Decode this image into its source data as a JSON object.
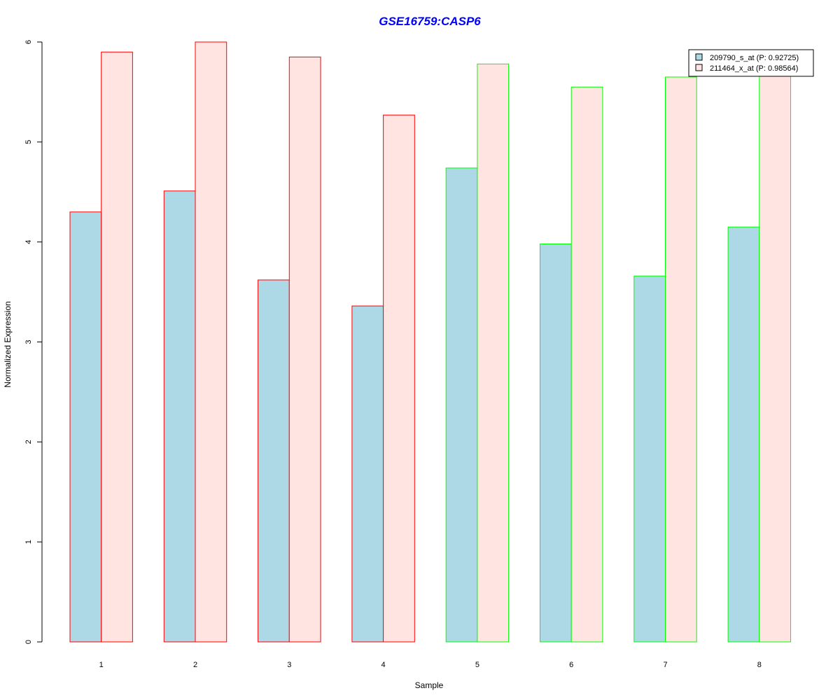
{
  "chart_data": {
    "type": "bar",
    "title": "GSE16759:CASP6",
    "xlabel": "Sample",
    "ylabel": "Normalized Expression",
    "categories": [
      "1",
      "2",
      "3",
      "4",
      "5",
      "6",
      "7",
      "8"
    ],
    "yticks": [
      "0",
      "1",
      "2",
      "3",
      "4",
      "5",
      "6"
    ],
    "ylim": [
      0,
      6
    ],
    "series": [
      {
        "name": "209790_s_at (P: 0.92725)",
        "fill": "#add8e6",
        "values": [
          4.3,
          4.51,
          3.62,
          3.36,
          4.74,
          3.98,
          3.66,
          4.15
        ]
      },
      {
        "name": "211464_x_at (P: 0.98564)",
        "fill": "#ffe4e1",
        "values": [
          5.9,
          6.0,
          5.85,
          5.27,
          5.78,
          5.55,
          5.65,
          5.76
        ]
      }
    ],
    "group_border_colors": [
      "#ff0000",
      "#ff0000",
      "#ff0000",
      "#ff0000",
      "#00ff00",
      "#00ff00",
      "#00ff00",
      "#00ff00"
    ],
    "legend_position": "top-right",
    "grid": false
  }
}
